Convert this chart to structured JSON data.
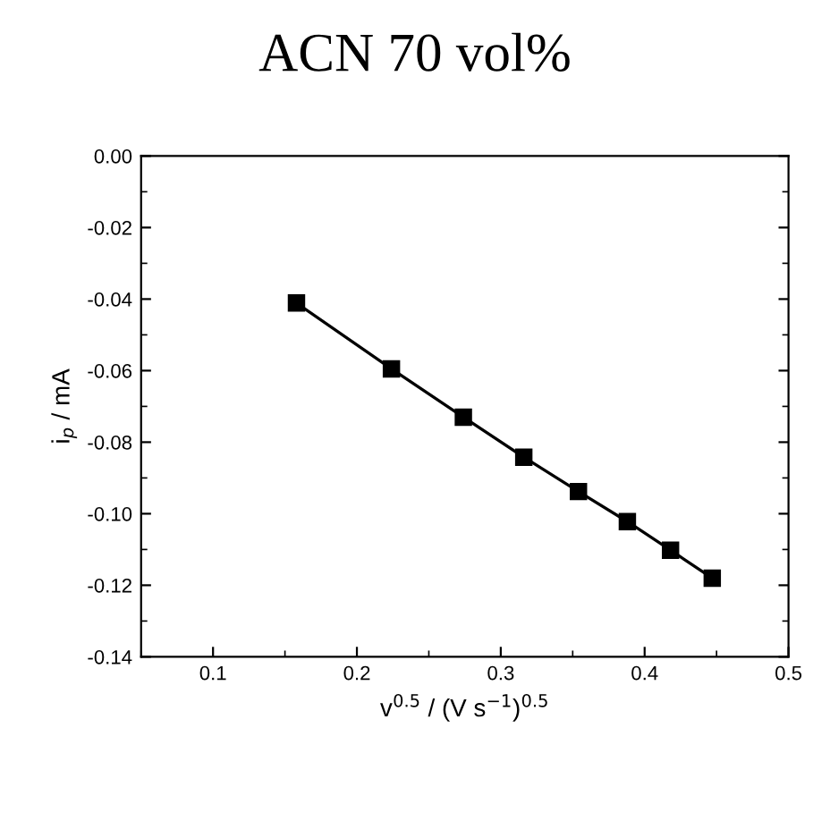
{
  "chart_data": {
    "type": "line",
    "title": "ACN 70 vol%",
    "xlabel": "v$^{0.5}$ / (V s$^{−1}$)$^{0.5}$",
    "ylabel": "i$_{p}$ / mA",
    "x": [
      0.158,
      0.224,
      0.274,
      0.316,
      0.354,
      0.388,
      0.418,
      0.447
    ],
    "series": [
      {
        "color": "#000000",
        "values": [
          -0.0411,
          -0.0595,
          -0.073,
          -0.0842,
          -0.0938,
          -0.1022,
          -0.1102,
          -0.118
        ]
      }
    ],
    "marker": "square",
    "line_style": "solid",
    "grid": false,
    "xlim": [
      0.05,
      0.5
    ],
    "xticks": [
      0.1,
      0.2,
      0.3,
      0.4,
      0.5
    ],
    "ylim": [
      -0.14,
      0.0
    ],
    "yticks": [
      {
        "value": -0.14,
        "label": "-0.14"
      },
      {
        "value": -0.12,
        "label": "-0.12"
      },
      {
        "value": -0.1,
        "label": "-0.10"
      },
      {
        "value": -0.08,
        "label": "-0.08"
      },
      {
        "value": -0.06,
        "label": "-0.06"
      },
      {
        "value": -0.04,
        "label": "-0.04"
      },
      {
        "value": -0.02,
        "label": "-0.02"
      },
      {
        "value": 0.0,
        "label": "0.00"
      }
    ]
  }
}
